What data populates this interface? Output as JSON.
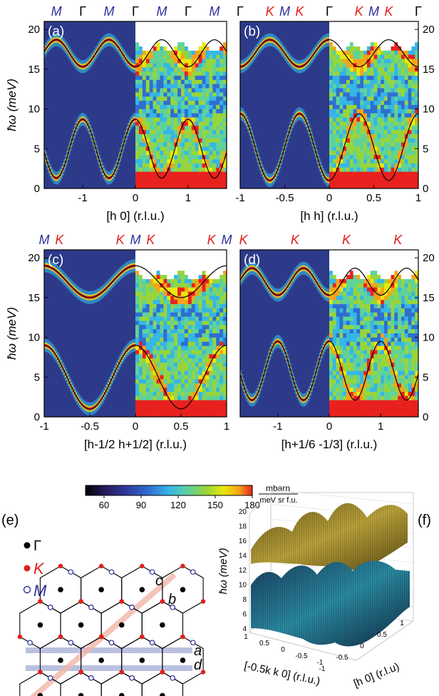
{
  "panels": [
    {
      "id": "a",
      "label": "(a)",
      "xlabel": "[h 0] (r.l.u.)",
      "xlim": [
        -1.732,
        1.732
      ],
      "xticks": [
        "-1",
        "0",
        "1"
      ],
      "xtick_values": [
        -1,
        0,
        1
      ],
      "top_labels": [
        {
          "text": "M",
          "color": "#2b2f9f",
          "x": -1.5
        },
        {
          "text": "Γ",
          "color": "#000000",
          "x": -1
        },
        {
          "text": "M",
          "color": "#2b2f9f",
          "x": -0.5
        },
        {
          "text": "Γ",
          "color": "#000000",
          "x": 0
        },
        {
          "text": "M",
          "color": "#2b2f9f",
          "x": 0.5
        },
        {
          "text": "Γ",
          "color": "#000000",
          "x": 1
        },
        {
          "text": "M",
          "color": "#2b2f9f",
          "x": 1.5
        }
      ]
    },
    {
      "id": "b",
      "label": "(b)",
      "xlabel": "[h h] (r.l.u.)",
      "xlim": [
        -1,
        1
      ],
      "xticks": [
        "-1",
        "-0.5",
        "0",
        "0.5",
        "1"
      ],
      "xtick_values": [
        -1,
        -0.5,
        0,
        0.5,
        1
      ],
      "top_labels": [
        {
          "text": "Γ",
          "color": "#000000",
          "x": -1
        },
        {
          "text": "K",
          "color": "#e0201c",
          "x": -0.667
        },
        {
          "text": "M",
          "color": "#2b2f9f",
          "x": -0.5
        },
        {
          "text": "K",
          "color": "#e0201c",
          "x": -0.333
        },
        {
          "text": "Γ",
          "color": "#000000",
          "x": 0
        },
        {
          "text": "K",
          "color": "#e0201c",
          "x": 0.333
        },
        {
          "text": "M",
          "color": "#2b2f9f",
          "x": 0.5
        },
        {
          "text": "K",
          "color": "#e0201c",
          "x": 0.667
        },
        {
          "text": "Γ",
          "color": "#000000",
          "x": 1
        }
      ]
    },
    {
      "id": "c",
      "label": "(c)",
      "xlabel": "[h-1/2 h+1/2] (r.l.u.)",
      "xlim": [
        -1,
        1
      ],
      "xticks": [
        "-1",
        "-0.5",
        "0",
        "0.5",
        "1"
      ],
      "xtick_values": [
        -1,
        -0.5,
        0,
        0.5,
        1
      ],
      "top_labels": [
        {
          "text": "M",
          "color": "#2b2f9f",
          "x": -1
        },
        {
          "text": "K",
          "color": "#e0201c",
          "x": -0.833
        },
        {
          "text": "K",
          "color": "#e0201c",
          "x": -0.167
        },
        {
          "text": "M",
          "color": "#2b2f9f",
          "x": 0
        },
        {
          "text": "K",
          "color": "#e0201c",
          "x": 0.167
        },
        {
          "text": "K",
          "color": "#e0201c",
          "x": 0.833
        },
        {
          "text": "M",
          "color": "#2b2f9f",
          "x": 1
        }
      ]
    },
    {
      "id": "d",
      "label": "(d)",
      "xlabel": "[h+1/6 -1/3]  (r.l.u.)",
      "xlim": [
        -1.732,
        1.732
      ],
      "xticks": [
        "-1",
        "0",
        "1"
      ],
      "xtick_values": [
        -1,
        0,
        1
      ],
      "top_labels": [
        {
          "text": "K",
          "color": "#e0201c",
          "x": -1.667
        },
        {
          "text": "K",
          "color": "#e0201c",
          "x": -0.667
        },
        {
          "text": "K",
          "color": "#e0201c",
          "x": 0.333
        },
        {
          "text": "K",
          "color": "#e0201c",
          "x": 1.333
        }
      ]
    }
  ],
  "y_axis": {
    "label": "ħω (meV)",
    "ylim": [
      0,
      21
    ],
    "ticks": [
      "0",
      "5",
      "10",
      "15",
      "20"
    ],
    "tick_values": [
      0,
      5,
      10,
      15,
      20
    ]
  },
  "colorbar": {
    "ticks": [
      "60",
      "90",
      "120",
      "150",
      "180"
    ],
    "tick_values": [
      60,
      90,
      120,
      150,
      180
    ],
    "range": [
      45,
      180
    ],
    "unit_top": "mbarn",
    "unit_bottom": "meV sr f.u.",
    "colors": [
      "#000000",
      "#2a1a5e",
      "#2d3a9e",
      "#2f6ed0",
      "#35b6e6",
      "#5fd29a",
      "#97d53a",
      "#e8e80c",
      "#f6a21a",
      "#e8211e"
    ]
  },
  "panel_e": {
    "label": "(e)",
    "legend": [
      {
        "symbol": "Γ",
        "style": "black-dot"
      },
      {
        "symbol": "K",
        "style": "red-dot"
      },
      {
        "symbol": "M",
        "style": "blue-circle"
      }
    ],
    "line_labels": [
      "c",
      "b",
      "a",
      "d"
    ]
  },
  "panel_f": {
    "label": "(f)",
    "zlabel": "ħω (meV)",
    "zticks": [
      "4",
      "6",
      "8",
      "10",
      "12",
      "14",
      "16",
      "18",
      "20"
    ],
    "xlabel": "[h 0] (r.l.u)",
    "ylabel": "[-0.5k k 0] (r.l.u.)",
    "xticks": [
      "-1",
      "-0.5",
      "0",
      "0.5",
      "1"
    ],
    "yticks": [
      "1",
      "0.5",
      "0",
      "-0.5",
      "-1"
    ]
  },
  "colors": {
    "gamma": "#000000",
    "k_point": "#e0201c",
    "m_point": "#2b2f9f",
    "path_a": "#aab0d8",
    "path_c": "#f3b6a8"
  }
}
